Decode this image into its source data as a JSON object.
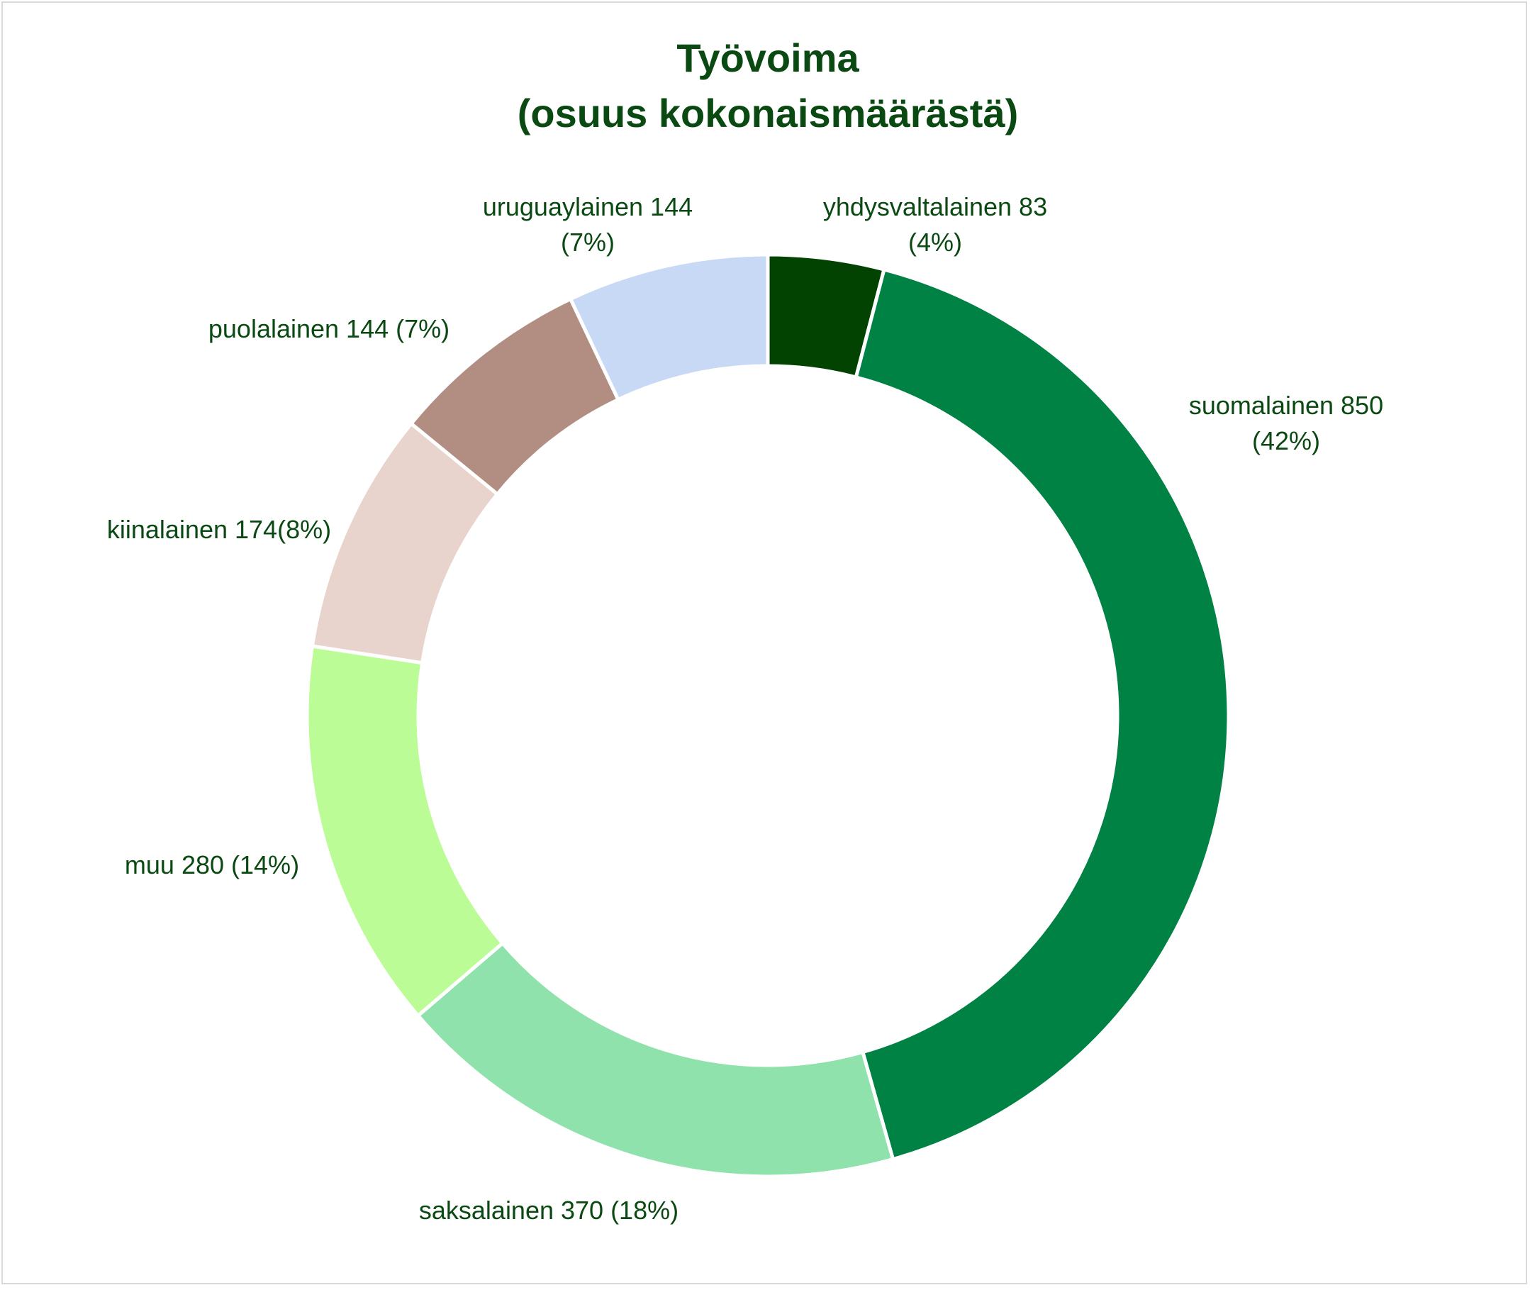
{
  "chart_data": {
    "type": "pie",
    "variant": "donut",
    "title_lines": [
      "Työvoima",
      "(osuus kokonaismäärästä)"
    ],
    "title_color": "#0a4a12",
    "label_color": "#0a4a12",
    "legend": "none",
    "slices": [
      {
        "name": "yhdysvaltalainen",
        "value": 83,
        "percent": 4,
        "color": "#034301",
        "label_lines": [
          "yhdysvaltalainen 83",
          "(4%)"
        ]
      },
      {
        "name": "suomalainen",
        "value": 850,
        "percent": 42,
        "color": "#008244",
        "label_lines": [
          "suomalainen 850",
          "(42%)"
        ]
      },
      {
        "name": "saksalainen",
        "value": 370,
        "percent": 18,
        "color": "#8fe2ab",
        "label_lines": [
          "saksalainen 370 (18%)"
        ]
      },
      {
        "name": "muu",
        "value": 280,
        "percent": 14,
        "color": "#bcfc97",
        "label_lines": [
          "muu 280 (14%)"
        ]
      },
      {
        "name": "kiinalainen",
        "value": 174,
        "percent": 8,
        "color": "#e8d4cd",
        "label_lines": [
          "kiinalainen 174(8%)"
        ]
      },
      {
        "name": "puolalainen",
        "value": 144,
        "percent": 7,
        "color": "#b28e82",
        "label_lines": [
          "puolalainen 144 (7%)"
        ]
      },
      {
        "name": "uruguaylainen",
        "value": 144,
        "percent": 7,
        "color": "#c8d9f6",
        "label_lines": [
          "uruguaylainen 144",
          "(7%)"
        ]
      }
    ]
  }
}
